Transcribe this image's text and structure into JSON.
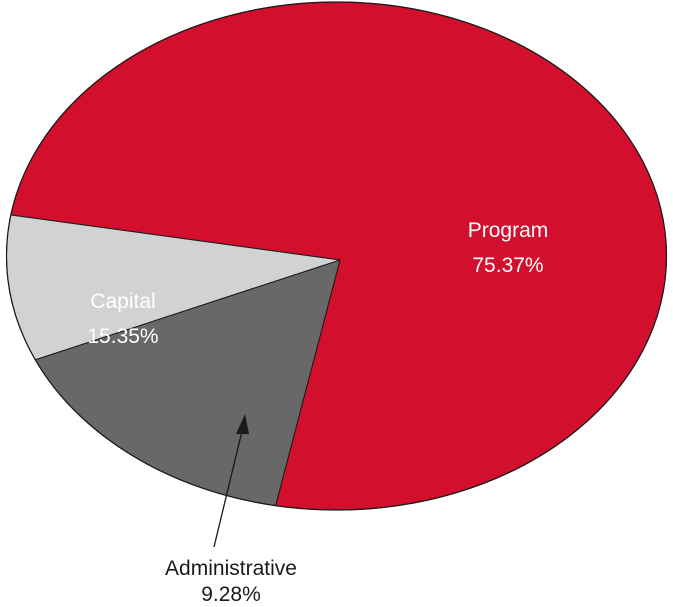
{
  "chart_data": {
    "type": "pie",
    "slices": [
      {
        "label": "Program",
        "value_label": "75.37%",
        "value": 75.37,
        "color": "#d20f2d",
        "text_color": "#ffffff"
      },
      {
        "label": "Capital",
        "value_label": "15.35%",
        "value": 15.35,
        "color": "#686868",
        "text_color": "#ffffff"
      },
      {
        "label": "Administrative",
        "value_label": "9.28%",
        "value": 9.28,
        "color": "#d1d2d4",
        "text_color": "#1a1a1a"
      }
    ],
    "title": "",
    "legend": "none",
    "annotation": "Administrative slice labeled outside with arrow"
  }
}
